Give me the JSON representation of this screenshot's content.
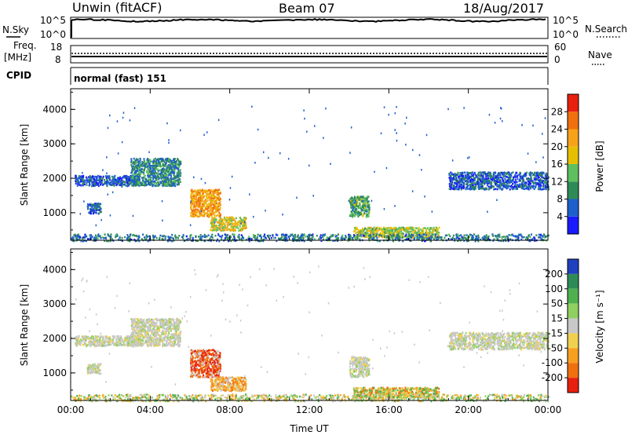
{
  "header": {
    "station": "Unwin (fitACF)",
    "beam": "Beam 07",
    "date": "18/Aug/2017"
  },
  "top_panels": {
    "nsky_label": "N.Sky",
    "nsky_ticks": [
      "10^5",
      "10^0"
    ],
    "nsearch_label": "N.Search",
    "freq_label_1": "Freq.",
    "freq_label_2": "[MHz]",
    "freq_ticks_left": [
      "18",
      "8"
    ],
    "nave_label": "Nave",
    "nave_ticks_right": [
      "60",
      "0"
    ],
    "cpid_label": "CPID",
    "cpid_text": "normal (fast) 151"
  },
  "chart_data": [
    {
      "type": "heatmap",
      "panel": "power",
      "xlabel": "",
      "ylabel": "Slant Range [km]",
      "x_ticks": [
        "00:00",
        "04:00",
        "08:00",
        "12:00",
        "16:00",
        "20:00",
        "00:00"
      ],
      "y_ticks": [
        1000,
        2000,
        3000,
        4000
      ],
      "ylim": [
        200,
        4600
      ],
      "xlim_hours": [
        0,
        24
      ],
      "colorbar": {
        "label": "Power [dB]",
        "ticks": [
          4,
          8,
          12,
          16,
          20,
          24,
          28
        ],
        "range": [
          0,
          32
        ],
        "colors": [
          "#1a1aff",
          "#1e5fcc",
          "#2e8b57",
          "#5fbf5f",
          "#e6c000",
          "#f7a31a",
          "#f07010",
          "#e82010"
        ]
      },
      "echo_regions": [
        {
          "t0": 0.2,
          "t1": 3.5,
          "r0": 1800,
          "r1": 2100,
          "level": 6
        },
        {
          "t0": 3.0,
          "t1": 5.5,
          "r0": 1800,
          "r1": 2600,
          "level": 9
        },
        {
          "t0": 0.8,
          "t1": 1.5,
          "r0": 1000,
          "r1": 1300,
          "level": 6
        },
        {
          "t0": 6.0,
          "t1": 7.5,
          "r0": 900,
          "r1": 1700,
          "level": 22
        },
        {
          "t0": 7.0,
          "t1": 8.8,
          "r0": 500,
          "r1": 900,
          "level": 18
        },
        {
          "t0": 14.0,
          "t1": 15.0,
          "r0": 900,
          "r1": 1500,
          "level": 12
        },
        {
          "t0": 14.2,
          "t1": 18.5,
          "r0": 300,
          "r1": 600,
          "level": 16
        },
        {
          "t0": 19.0,
          "t1": 24.0,
          "r0": 1700,
          "r1": 2200,
          "level": 6
        },
        {
          "t0": 0.0,
          "t1": 24.0,
          "r0": 200,
          "r1": 400,
          "level": 8
        }
      ]
    },
    {
      "type": "heatmap",
      "panel": "velocity",
      "xlabel": "Time UT",
      "ylabel": "Slant Range [km]",
      "x_ticks": [
        "00:00",
        "04:00",
        "08:00",
        "12:00",
        "16:00",
        "20:00",
        "00:00"
      ],
      "y_ticks": [
        1000,
        2000,
        3000,
        4000
      ],
      "ylim": [
        200,
        4600
      ],
      "xlim_hours": [
        0,
        24
      ],
      "colorbar": {
        "label": "Velocity [m s⁻¹]",
        "ticks": [
          200,
          100,
          50,
          15,
          -15,
          -50,
          -100,
          -200
        ],
        "colors": [
          "#2040c0",
          "#2e8b57",
          "#50b050",
          "#90d060",
          "#c8c8c8",
          "#f0d050",
          "#f7a020",
          "#f07010",
          "#e82010"
        ]
      },
      "echo_regions": [
        {
          "t0": 0.2,
          "t1": 3.5,
          "r0": 1800,
          "r1": 2100,
          "level": "grey"
        },
        {
          "t0": 3.0,
          "t1": 5.5,
          "r0": 1800,
          "r1": 2600,
          "level": "grey"
        },
        {
          "t0": 0.8,
          "t1": 1.5,
          "r0": 1000,
          "r1": 1300,
          "level": "grey"
        },
        {
          "t0": 6.0,
          "t1": 7.5,
          "r0": 900,
          "r1": 1700,
          "level": "red"
        },
        {
          "t0": 7.0,
          "t1": 8.8,
          "r0": 500,
          "r1": 900,
          "level": "orange"
        },
        {
          "t0": 14.0,
          "t1": 15.0,
          "r0": 900,
          "r1": 1500,
          "level": "grey"
        },
        {
          "t0": 14.2,
          "t1": 18.5,
          "r0": 300,
          "r1": 600,
          "level": "orange-green"
        },
        {
          "t0": 19.0,
          "t1": 24.0,
          "r0": 1700,
          "r1": 2200,
          "level": "grey"
        },
        {
          "t0": 0.0,
          "t1": 24.0,
          "r0": 200,
          "r1": 400,
          "level": "green"
        }
      ]
    }
  ]
}
